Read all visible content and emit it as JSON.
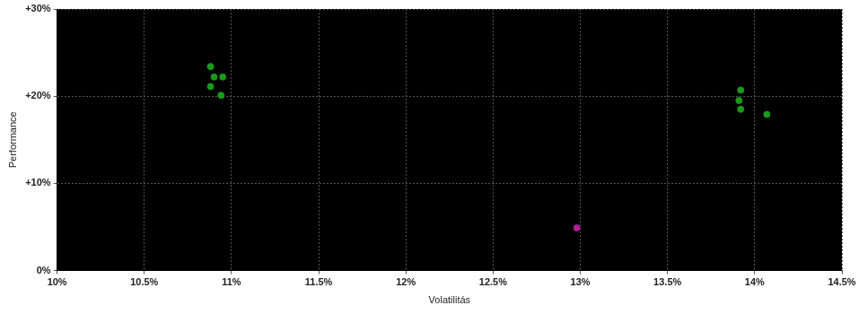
{
  "chart_data": {
    "type": "scatter",
    "x_label": "Volatilitás",
    "y_label": "Performance",
    "x": [
      10.88,
      10.9,
      10.95,
      10.88,
      10.94,
      13.92,
      13.91,
      13.92,
      14.07,
      12.98
    ],
    "values": [
      23.4,
      22.2,
      22.2,
      21.1,
      20.1,
      20.7,
      19.5,
      18.5,
      17.9,
      4.9
    ],
    "colors": [
      "#1a9a1a",
      "#1a9a1a",
      "#1a9a1a",
      "#1a9a1a",
      "#1a9a1a",
      "#1a9a1a",
      "#1a9a1a",
      "#1a9a1a",
      "#1a9a1a",
      "#b0209a"
    ],
    "xlim": [
      10,
      14.5
    ],
    "xticks": [
      {
        "value": 10,
        "label": "10%"
      },
      {
        "value": 10.5,
        "label": "10.5%"
      },
      {
        "value": 11,
        "label": "11%"
      },
      {
        "value": 11.5,
        "label": "11.5%"
      },
      {
        "value": 12,
        "label": "12%"
      },
      {
        "value": 12.5,
        "label": "12.5%"
      },
      {
        "value": 13,
        "label": "13%"
      },
      {
        "value": 13.5,
        "label": "13.5%"
      },
      {
        "value": 14,
        "label": "14%"
      },
      {
        "value": 14.5,
        "label": "14.5%"
      }
    ],
    "ylim": [
      0,
      30
    ],
    "yticks": [
      {
        "value": 0,
        "label": "0%"
      },
      {
        "value": 10,
        "label": "+10%"
      },
      {
        "value": 20,
        "label": "+20%"
      },
      {
        "value": 30,
        "label": "+30%"
      }
    ],
    "grid": true
  }
}
